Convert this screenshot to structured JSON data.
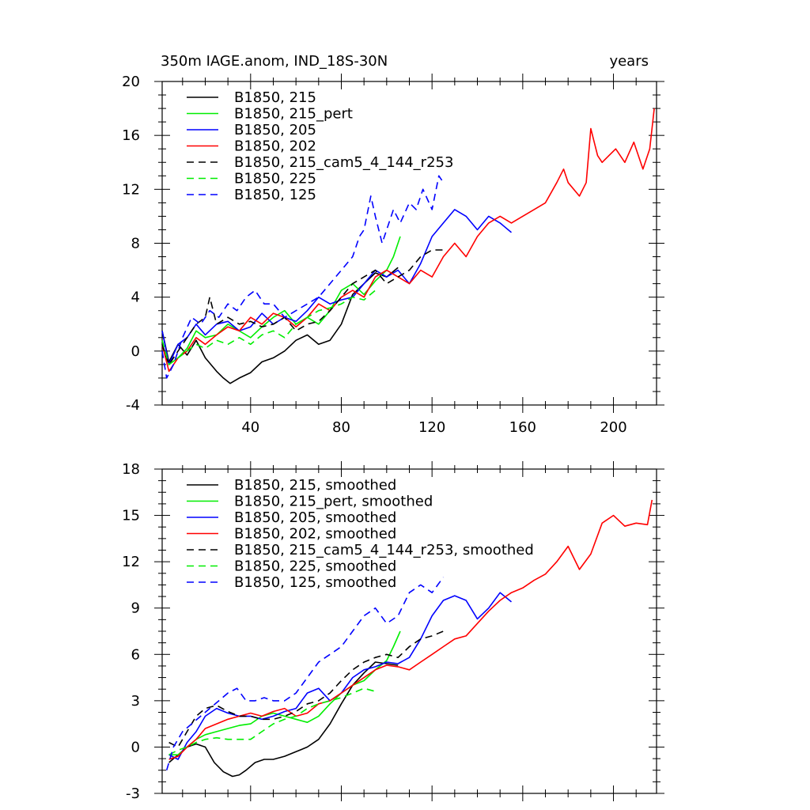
{
  "title": "350m IAGE.anom, IND_18S-30N",
  "units_label": "years",
  "colors": {
    "black": "#000000",
    "green": "#00ee00",
    "blue": "#0000ff",
    "red": "#ff0000"
  },
  "chart_data": [
    {
      "type": "line",
      "xlim": [
        1,
        219
      ],
      "ylim": [
        -4,
        20
      ],
      "yticks": [
        -4,
        0,
        4,
        8,
        12,
        16,
        20
      ],
      "xticks": [
        40,
        80,
        120,
        160,
        200
      ],
      "xtick_labels": [
        "40",
        "80",
        "120",
        "160",
        "200"
      ],
      "ytick_labels": [
        "-4",
        "0",
        "4",
        "8",
        "12",
        "16",
        "20"
      ],
      "series": [
        {
          "name": "B1850, 215",
          "color": "#000000",
          "dash": false,
          "x": [
            1,
            4,
            8,
            12,
            16,
            20,
            25,
            28,
            31,
            35,
            40,
            45,
            50,
            55,
            60,
            65,
            70,
            75,
            80,
            85,
            90,
            95,
            100,
            105
          ],
          "y": [
            1.5,
            -0.8,
            0.5,
            -0.3,
            0.8,
            -0.5,
            -1.5,
            -2.0,
            -2.4,
            -2.0,
            -1.6,
            -0.8,
            -0.5,
            0.0,
            0.8,
            1.2,
            0.5,
            0.8,
            2.0,
            4.2,
            5.0,
            5.8,
            5.5,
            6.2
          ]
        },
        {
          "name": "B1850, 215_pert",
          "color": "#00ee00",
          "dash": false,
          "x": [
            1,
            4,
            8,
            12,
            16,
            20,
            25,
            30,
            35,
            40,
            45,
            50,
            55,
            60,
            65,
            70,
            75,
            80,
            85,
            90,
            95,
            100,
            103,
            106
          ],
          "y": [
            0.5,
            -1.0,
            -0.5,
            0.2,
            1.5,
            1.0,
            1.2,
            2.0,
            1.5,
            1.0,
            1.8,
            2.5,
            3.0,
            2.0,
            2.5,
            2.0,
            3.0,
            4.5,
            5.0,
            4.2,
            5.2,
            6.0,
            7.0,
            8.5
          ]
        },
        {
          "name": "B1850, 205",
          "color": "#0000ff",
          "dash": false,
          "x": [
            1,
            4,
            8,
            12,
            16,
            20,
            25,
            30,
            35,
            40,
            45,
            50,
            55,
            60,
            65,
            70,
            75,
            80,
            85,
            90,
            95,
            100,
            105,
            110,
            115,
            120,
            125,
            130,
            135,
            140,
            145,
            150,
            155
          ],
          "y": [
            1.5,
            -1.0,
            0.5,
            1.0,
            2.0,
            1.2,
            2.0,
            2.2,
            1.5,
            1.8,
            2.8,
            2.0,
            2.5,
            2.2,
            3.0,
            4.0,
            3.5,
            3.8,
            4.0,
            5.0,
            6.0,
            5.5,
            6.0,
            5.0,
            6.5,
            8.5,
            9.5,
            10.5,
            10.0,
            9.0,
            10.0,
            9.5,
            8.8
          ]
        },
        {
          "name": "B1850, 202",
          "color": "#ff0000",
          "dash": false,
          "x": [
            1,
            4,
            8,
            12,
            16,
            20,
            25,
            30,
            35,
            40,
            45,
            50,
            55,
            60,
            65,
            70,
            75,
            80,
            85,
            90,
            95,
            100,
            105,
            110,
            115,
            120,
            125,
            130,
            135,
            140,
            145,
            150,
            155,
            160,
            165,
            170,
            175,
            178,
            180,
            185,
            188,
            190,
            193,
            195,
            198,
            201,
            205,
            209,
            213,
            216,
            218
          ],
          "y": [
            0.5,
            -1.5,
            -0.5,
            0.0,
            1.0,
            0.5,
            1.2,
            1.8,
            1.5,
            2.5,
            2.0,
            2.8,
            2.5,
            1.8,
            2.5,
            3.5,
            3.0,
            4.0,
            4.5,
            4.0,
            5.5,
            6.0,
            5.5,
            5.0,
            6.0,
            5.5,
            7.0,
            8.0,
            7.0,
            8.5,
            9.5,
            10.0,
            9.5,
            10.0,
            10.5,
            11.0,
            12.5,
            13.5,
            12.5,
            11.5,
            12.5,
            16.5,
            14.5,
            14.0,
            14.5,
            15.0,
            14.0,
            15.5,
            13.5,
            15.0,
            18.0
          ]
        },
        {
          "name": "B1850, 215_cam5_4_144_r253",
          "color": "#000000",
          "dash": true,
          "x": [
            1,
            4,
            8,
            12,
            16,
            20,
            22,
            25,
            30,
            35,
            40,
            45,
            50,
            55,
            60,
            65,
            70,
            75,
            80,
            85,
            90,
            95,
            100,
            105,
            110,
            115,
            120,
            125
          ],
          "y": [
            0.5,
            -1.0,
            0.0,
            1.0,
            2.0,
            2.5,
            4.0,
            2.0,
            2.5,
            2.0,
            2.2,
            1.8,
            2.0,
            2.5,
            1.5,
            2.0,
            2.2,
            3.0,
            4.0,
            5.0,
            5.5,
            6.0,
            5.0,
            5.5,
            6.0,
            7.0,
            7.5,
            7.5
          ]
        },
        {
          "name": "B1850, 225",
          "color": "#00ee00",
          "dash": true,
          "x": [
            1,
            4,
            8,
            12,
            16,
            20,
            25,
            30,
            35,
            40,
            45,
            50,
            55,
            60,
            65,
            70,
            75,
            80,
            85,
            90,
            95
          ],
          "y": [
            0.8,
            -1.0,
            -0.5,
            0.0,
            0.5,
            0.2,
            0.8,
            0.5,
            1.0,
            0.5,
            1.2,
            1.5,
            1.0,
            2.0,
            2.5,
            3.0,
            3.2,
            3.5,
            4.0,
            3.8,
            4.5
          ]
        },
        {
          "name": "B1850, 125",
          "color": "#0000ff",
          "dash": true,
          "x": [
            1,
            3,
            6,
            10,
            14,
            18,
            22,
            26,
            30,
            34,
            38,
            42,
            46,
            50,
            55,
            60,
            65,
            70,
            75,
            80,
            85,
            88,
            90,
            93,
            95,
            98,
            100,
            103,
            106,
            110,
            113,
            116,
            120,
            123,
            125
          ],
          "y": [
            0.0,
            -2.0,
            -1.0,
            1.0,
            2.5,
            2.0,
            3.0,
            2.5,
            3.5,
            3.0,
            4.0,
            4.5,
            3.5,
            3.5,
            2.5,
            3.0,
            3.5,
            4.0,
            5.0,
            6.0,
            7.0,
            8.5,
            9.0,
            11.5,
            10.0,
            8.0,
            9.0,
            10.5,
            9.5,
            11.0,
            10.5,
            12.0,
            10.5,
            13.0,
            12.5
          ]
        }
      ]
    },
    {
      "type": "line",
      "xlim": [
        1,
        219
      ],
      "ylim": [
        -3,
        18
      ],
      "yticks": [
        -3,
        0,
        3,
        6,
        9,
        12,
        15,
        18
      ],
      "xticks": [
        40,
        80,
        120,
        160,
        200
      ],
      "ytick_labels": [
        "-3",
        "0",
        "3",
        "6",
        "9",
        "12",
        "15",
        "18"
      ],
      "series": [
        {
          "name": "B1850, 215, smoothed",
          "color": "#000000",
          "dash": false,
          "x": [
            4,
            8,
            12,
            16,
            20,
            24,
            28,
            32,
            35,
            38,
            42,
            46,
            50,
            55,
            60,
            65,
            70,
            75,
            80,
            85,
            90,
            95,
            100,
            105
          ],
          "y": [
            -1.0,
            -0.5,
            0.0,
            0.2,
            0.0,
            -1.0,
            -1.6,
            -1.9,
            -1.8,
            -1.5,
            -1.0,
            -0.8,
            -0.8,
            -0.6,
            -0.3,
            0.0,
            0.5,
            1.5,
            2.8,
            4.0,
            4.8,
            5.5,
            5.4,
            5.3
          ]
        },
        {
          "name": "B1850, 215_pert, smoothed",
          "color": "#00ee00",
          "dash": false,
          "x": [
            4,
            8,
            12,
            16,
            20,
            25,
            30,
            35,
            40,
            45,
            50,
            55,
            60,
            65,
            70,
            75,
            80,
            85,
            90,
            95,
            100,
            103,
            106
          ],
          "y": [
            -0.5,
            -0.5,
            0.0,
            0.5,
            0.8,
            1.0,
            1.2,
            1.4,
            1.5,
            2.0,
            2.2,
            2.0,
            1.8,
            1.6,
            2.0,
            2.8,
            3.5,
            4.0,
            4.3,
            5.0,
            5.6,
            6.5,
            7.5
          ]
        },
        {
          "name": "B1850, 205, smoothed",
          "color": "#0000ff",
          "dash": false,
          "x": [
            4,
            8,
            12,
            16,
            20,
            25,
            30,
            35,
            40,
            45,
            50,
            55,
            60,
            65,
            70,
            75,
            80,
            85,
            90,
            95,
            100,
            105,
            110,
            115,
            120,
            125,
            130,
            135,
            140,
            145,
            150,
            155
          ],
          "y": [
            -0.5,
            -0.8,
            0.3,
            1.0,
            2.0,
            2.5,
            2.2,
            2.0,
            2.0,
            1.8,
            2.0,
            2.3,
            2.5,
            3.5,
            3.8,
            3.0,
            3.5,
            4.5,
            5.0,
            5.2,
            5.5,
            5.4,
            5.8,
            7.0,
            8.5,
            9.5,
            9.8,
            9.5,
            8.3,
            9.0,
            10.0,
            9.4
          ]
        },
        {
          "name": "B1850, 202, smoothed",
          "color": "#ff0000",
          "dash": false,
          "x": [
            4,
            8,
            12,
            16,
            20,
            25,
            30,
            35,
            40,
            45,
            50,
            55,
            60,
            65,
            70,
            75,
            80,
            85,
            90,
            95,
            100,
            105,
            110,
            115,
            120,
            125,
            130,
            135,
            140,
            145,
            150,
            155,
            160,
            165,
            170,
            175,
            180,
            185,
            190,
            195,
            200,
            205,
            210,
            215,
            217
          ],
          "y": [
            -0.8,
            -0.6,
            0.0,
            0.5,
            1.2,
            1.5,
            1.8,
            2.0,
            2.2,
            2.0,
            2.3,
            2.5,
            2.0,
            2.2,
            2.8,
            3.0,
            3.5,
            4.0,
            4.5,
            5.0,
            5.3,
            5.2,
            5.0,
            5.5,
            6.0,
            6.5,
            7.0,
            7.2,
            8.0,
            8.8,
            9.5,
            10.0,
            10.3,
            10.8,
            11.2,
            12.0,
            13.0,
            11.5,
            12.5,
            14.5,
            15.0,
            14.3,
            14.5,
            14.4,
            16.0
          ]
        },
        {
          "name": "B1850, 215_cam5_4_144_r253, smoothed",
          "color": "#000000",
          "dash": true,
          "x": [
            4,
            8,
            12,
            16,
            20,
            25,
            30,
            35,
            40,
            45,
            50,
            55,
            60,
            65,
            70,
            75,
            80,
            85,
            90,
            95,
            100,
            105,
            110,
            115,
            120,
            125
          ],
          "y": [
            0.3,
            0.0,
            1.0,
            2.0,
            2.5,
            2.7,
            2.3,
            2.0,
            2.0,
            1.8,
            1.8,
            2.0,
            2.3,
            2.8,
            3.0,
            3.5,
            4.3,
            5.0,
            5.5,
            5.8,
            6.0,
            5.8,
            6.5,
            7.0,
            7.2,
            7.5
          ]
        },
        {
          "name": "B1850, 225, smoothed",
          "color": "#00ee00",
          "dash": true,
          "x": [
            4,
            8,
            12,
            16,
            20,
            25,
            30,
            35,
            40,
            45,
            50,
            55,
            60,
            65,
            70,
            75,
            80,
            85,
            90,
            95
          ],
          "y": [
            -0.5,
            -0.2,
            0.0,
            0.3,
            0.5,
            0.6,
            0.5,
            0.5,
            0.5,
            1.0,
            1.5,
            1.8,
            2.0,
            2.5,
            2.8,
            3.0,
            3.2,
            3.5,
            3.8,
            3.6
          ]
        },
        {
          "name": "B1850, 125, smoothed",
          "color": "#0000ff",
          "dash": true,
          "x": [
            3,
            6,
            10,
            14,
            18,
            22,
            26,
            30,
            34,
            38,
            42,
            46,
            50,
            55,
            60,
            65,
            70,
            75,
            80,
            85,
            90,
            95,
            100,
            105,
            110,
            115,
            120,
            125
          ],
          "y": [
            -1.5,
            0.0,
            1.0,
            1.5,
            2.0,
            2.5,
            3.0,
            3.5,
            3.8,
            3.0,
            3.0,
            3.2,
            3.0,
            3.0,
            3.5,
            4.5,
            5.5,
            6.0,
            6.5,
            7.5,
            8.5,
            9.0,
            8.0,
            8.5,
            10.0,
            10.5,
            10.0,
            11.0
          ]
        }
      ]
    }
  ]
}
